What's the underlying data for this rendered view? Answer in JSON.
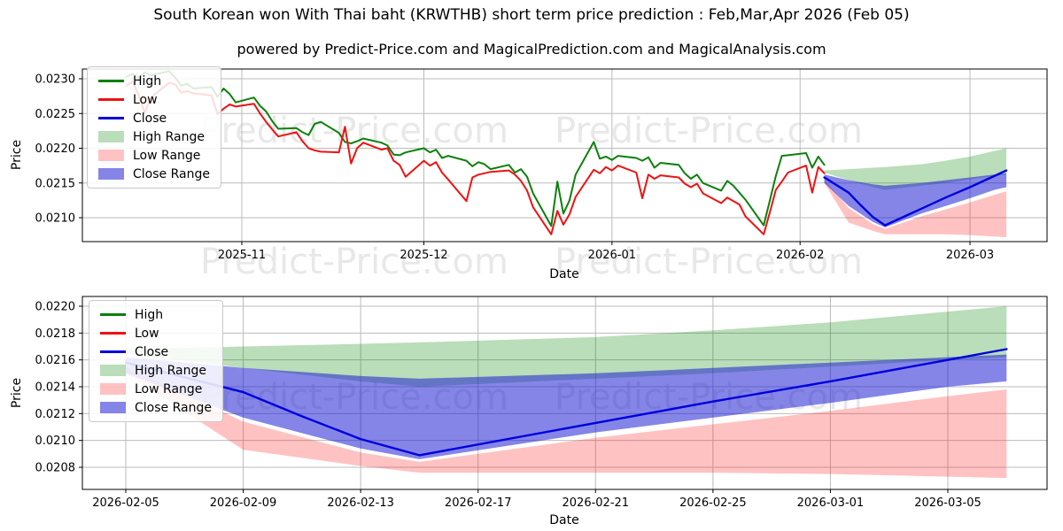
{
  "page": {
    "title": "South Korean won With Thai baht (KRWTHB) short term price prediction : Feb,Mar,Apr 2026 (Feb 05)",
    "subtitle": "powered by Predict-Price.com and MagicalPrediction.com and MagicalAnalysis.com",
    "watermark_text": "Predict-Price.com"
  },
  "colors": {
    "high": "#0c800c",
    "low": "#ee1212",
    "close": "#0000dd",
    "high_range": "rgba(0,128,0,0.27)",
    "low_range": "rgba(255,30,30,0.27)",
    "close_range": "rgba(25,25,210,0.53)",
    "grid": "#bbbbbb",
    "axis": "#000000"
  },
  "legend": [
    {
      "label": "High",
      "type": "line",
      "color": "high"
    },
    {
      "label": "Low",
      "type": "line",
      "color": "low"
    },
    {
      "label": "Close",
      "type": "line",
      "color": "close"
    },
    {
      "label": "High Range",
      "type": "patch",
      "color": "high_range"
    },
    {
      "label": "Low Range",
      "type": "patch",
      "color": "low_range"
    },
    {
      "label": "Close Range",
      "type": "patch",
      "color": "close_range"
    }
  ],
  "chart_data": [
    {
      "type": "line",
      "xlabel": "Date",
      "ylabel": "Price",
      "x_ticks": [
        {
          "label": "2025-11",
          "date": "2025-11-01"
        },
        {
          "label": "2025-12",
          "date": "2025-12-01"
        },
        {
          "label": "2026-01",
          "date": "2026-01-01"
        },
        {
          "label": "2026-02",
          "date": "2026-02-01"
        },
        {
          "label": "2026-03",
          "date": "2026-03-01"
        }
      ],
      "y_ticks": [
        {
          "label": "0.0230",
          "value": 0.023
        },
        {
          "label": "0.0225",
          "value": 0.0225
        },
        {
          "label": "0.0220",
          "value": 0.022
        },
        {
          "label": "0.0215",
          "value": 0.0215
        },
        {
          "label": "0.0210",
          "value": 0.021
        }
      ],
      "series": [
        {
          "name": "High",
          "color": "high",
          "dates": [
            "2025-10-13",
            "2025-10-14",
            "2025-10-15",
            "2025-10-16",
            "2025-10-17",
            "2025-10-20",
            "2025-10-21",
            "2025-10-22",
            "2025-10-23",
            "2025-10-24",
            "2025-10-27",
            "2025-10-28",
            "2025-10-29",
            "2025-10-30",
            "2025-10-31",
            "2025-11-03",
            "2025-11-04",
            "2025-11-05",
            "2025-11-06",
            "2025-11-07",
            "2025-11-10",
            "2025-11-11",
            "2025-11-12",
            "2025-11-13",
            "2025-11-14",
            "2025-11-17",
            "2025-11-18",
            "2025-11-19",
            "2025-11-20",
            "2025-11-21",
            "2025-11-24",
            "2025-11-25",
            "2025-11-26",
            "2025-11-27",
            "2025-11-28",
            "2025-12-01",
            "2025-12-02",
            "2025-12-03",
            "2025-12-04",
            "2025-12-05",
            "2025-12-08",
            "2025-12-09",
            "2025-12-10",
            "2025-12-11",
            "2025-12-12",
            "2025-12-15",
            "2025-12-16",
            "2025-12-17",
            "2025-12-18",
            "2025-12-19",
            "2025-12-22",
            "2025-12-23",
            "2025-12-24",
            "2025-12-25",
            "2025-12-26",
            "2025-12-29",
            "2025-12-30",
            "2025-12-31",
            "2026-01-01",
            "2026-01-02",
            "2026-01-05",
            "2026-01-06",
            "2026-01-07",
            "2026-01-08",
            "2026-01-09",
            "2026-01-12",
            "2026-01-13",
            "2026-01-14",
            "2026-01-15",
            "2026-01-16",
            "2026-01-19",
            "2026-01-20",
            "2026-01-21",
            "2026-01-22",
            "2026-01-23",
            "2026-01-26",
            "2026-01-27",
            "2026-01-28",
            "2026-01-29",
            "2026-01-30",
            "2026-02-02",
            "2026-02-03",
            "2026-02-04",
            "2026-02-05"
          ],
          "values": [
            0.02303,
            0.02307,
            0.02301,
            0.02309,
            0.02305,
            0.02311,
            0.02302,
            0.0229,
            0.02293,
            0.02286,
            0.02288,
            0.02274,
            0.02286,
            0.02278,
            0.02266,
            0.02273,
            0.02261,
            0.02253,
            0.02239,
            0.02228,
            0.02229,
            0.02223,
            0.02219,
            0.02235,
            0.02238,
            0.02222,
            0.02209,
            0.02207,
            0.0221,
            0.02214,
            0.02208,
            0.02204,
            0.02191,
            0.0219,
            0.02194,
            0.022,
            0.02194,
            0.02198,
            0.02186,
            0.02189,
            0.02182,
            0.02174,
            0.0218,
            0.02177,
            0.0217,
            0.02176,
            0.02165,
            0.0217,
            0.02159,
            0.02135,
            0.02088,
            0.02152,
            0.02106,
            0.02125,
            0.02162,
            0.02209,
            0.02185,
            0.02188,
            0.02183,
            0.02189,
            0.02186,
            0.02182,
            0.02187,
            0.02172,
            0.02179,
            0.02176,
            0.02164,
            0.02156,
            0.02162,
            0.0215,
            0.02139,
            0.02153,
            0.02146,
            0.02136,
            0.02126,
            0.02089,
            0.02124,
            0.0216,
            0.02189,
            0.0219,
            0.02193,
            0.02172,
            0.02188,
            0.02176
          ]
        },
        {
          "name": "Low",
          "color": "low",
          "dates": [
            "2025-10-13",
            "2025-10-14",
            "2025-10-15",
            "2025-10-16",
            "2025-10-17",
            "2025-10-20",
            "2025-10-21",
            "2025-10-22",
            "2025-10-23",
            "2025-10-24",
            "2025-10-27",
            "2025-10-28",
            "2025-10-29",
            "2025-10-30",
            "2025-10-31",
            "2025-11-03",
            "2025-11-04",
            "2025-11-05",
            "2025-11-06",
            "2025-11-07",
            "2025-11-10",
            "2025-11-11",
            "2025-11-12",
            "2025-11-13",
            "2025-11-14",
            "2025-11-17",
            "2025-11-18",
            "2025-11-19",
            "2025-11-20",
            "2025-11-21",
            "2025-11-24",
            "2025-11-25",
            "2025-11-26",
            "2025-11-27",
            "2025-11-28",
            "2025-12-01",
            "2025-12-02",
            "2025-12-03",
            "2025-12-04",
            "2025-12-05",
            "2025-12-08",
            "2025-12-09",
            "2025-12-10",
            "2025-12-11",
            "2025-12-12",
            "2025-12-15",
            "2025-12-16",
            "2025-12-17",
            "2025-12-18",
            "2025-12-19",
            "2025-12-22",
            "2025-12-23",
            "2025-12-24",
            "2025-12-25",
            "2025-12-26",
            "2025-12-29",
            "2025-12-30",
            "2025-12-31",
            "2026-01-01",
            "2026-01-02",
            "2026-01-05",
            "2026-01-06",
            "2026-01-07",
            "2026-01-08",
            "2026-01-09",
            "2026-01-12",
            "2026-01-13",
            "2026-01-14",
            "2026-01-15",
            "2026-01-16",
            "2026-01-19",
            "2026-01-20",
            "2026-01-21",
            "2026-01-22",
            "2026-01-23",
            "2026-01-26",
            "2026-01-27",
            "2026-01-28",
            "2026-01-29",
            "2026-01-30",
            "2026-02-02",
            "2026-02-03",
            "2026-02-04",
            "2026-02-05"
          ],
          "values": [
            0.0229,
            0.02296,
            0.02276,
            0.02251,
            0.02273,
            0.02294,
            0.02292,
            0.0228,
            0.02282,
            0.02279,
            0.02276,
            0.02249,
            0.02257,
            0.02263,
            0.0226,
            0.02264,
            0.0225,
            0.02238,
            0.02227,
            0.02217,
            0.02223,
            0.0221,
            0.022,
            0.02197,
            0.02195,
            0.02194,
            0.02231,
            0.02178,
            0.022,
            0.02208,
            0.02198,
            0.022,
            0.02182,
            0.02176,
            0.02159,
            0.02182,
            0.02175,
            0.0218,
            0.02165,
            0.02155,
            0.02124,
            0.02158,
            0.02162,
            0.02164,
            0.02166,
            0.02168,
            0.02162,
            0.02153,
            0.02139,
            0.02115,
            0.02076,
            0.0211,
            0.0209,
            0.02105,
            0.0213,
            0.02169,
            0.02164,
            0.02173,
            0.02168,
            0.02175,
            0.02165,
            0.02128,
            0.02162,
            0.02156,
            0.02161,
            0.02158,
            0.02149,
            0.02144,
            0.02149,
            0.02135,
            0.02121,
            0.02129,
            0.02124,
            0.02119,
            0.02102,
            0.02076,
            0.02107,
            0.0214,
            0.02152,
            0.02165,
            0.02175,
            0.02136,
            0.02173,
            0.02164
          ]
        },
        {
          "name": "Close",
          "color": "close",
          "dates": [
            "2026-02-05",
            "2026-02-09",
            "2026-02-11",
            "2026-02-13",
            "2026-02-15",
            "2026-02-21",
            "2026-02-25",
            "2026-03-01",
            "2026-03-05",
            "2026-03-07"
          ],
          "values": [
            0.02158,
            0.02136,
            0.02118,
            0.02101,
            0.02089,
            0.02113,
            0.02129,
            0.02144,
            0.0216,
            0.02168
          ]
        }
      ],
      "bands": [
        {
          "name": "High Range",
          "color": "high_range",
          "dates": [
            "2026-02-05",
            "2026-02-09",
            "2026-02-13",
            "2026-02-15",
            "2026-02-21",
            "2026-02-25",
            "2026-03-01",
            "2026-03-05",
            "2026-03-07"
          ],
          "upper": [
            0.02168,
            0.0217,
            0.02172,
            0.02173,
            0.02177,
            0.02182,
            0.02188,
            0.02196,
            0.022
          ],
          "lower": [
            0.02165,
            0.02154,
            0.02144,
            0.0214,
            0.02146,
            0.0215,
            0.02155,
            0.0216,
            0.02162
          ]
        },
        {
          "name": "Low Range",
          "color": "low_range",
          "dates": [
            "2026-02-05",
            "2026-02-09",
            "2026-02-13",
            "2026-02-15",
            "2026-02-21",
            "2026-02-25",
            "2026-03-01",
            "2026-03-05",
            "2026-03-07"
          ],
          "upper": [
            0.02155,
            0.02114,
            0.02091,
            0.02084,
            0.02102,
            0.02112,
            0.02122,
            0.02133,
            0.02138
          ],
          "lower": [
            0.0215,
            0.02093,
            0.02081,
            0.02076,
            0.02076,
            0.02076,
            0.02075,
            0.02073,
            0.02072
          ]
        },
        {
          "name": "Close Range",
          "color": "close_range",
          "dates": [
            "2026-02-05",
            "2026-02-09",
            "2026-02-13",
            "2026-02-15",
            "2026-02-21",
            "2026-02-25",
            "2026-03-01",
            "2026-03-05",
            "2026-03-07"
          ],
          "upper": [
            0.02162,
            0.02154,
            0.02148,
            0.02146,
            0.0215,
            0.02154,
            0.02158,
            0.02162,
            0.02164
          ],
          "lower": [
            0.0215,
            0.02117,
            0.02094,
            0.02086,
            0.02106,
            0.02117,
            0.02128,
            0.0214,
            0.02144
          ]
        }
      ]
    },
    {
      "type": "line",
      "xlabel": "Date",
      "ylabel": "Price",
      "x_ticks": [
        {
          "label": "2026-02-05",
          "date": "2026-02-05"
        },
        {
          "label": "2026-02-09",
          "date": "2026-02-09"
        },
        {
          "label": "2026-02-13",
          "date": "2026-02-13"
        },
        {
          "label": "2026-02-17",
          "date": "2026-02-17"
        },
        {
          "label": "2026-02-21",
          "date": "2026-02-21"
        },
        {
          "label": "2026-02-25",
          "date": "2026-02-25"
        },
        {
          "label": "2026-03-01",
          "date": "2026-03-01"
        },
        {
          "label": "2026-03-05",
          "date": "2026-03-05"
        }
      ],
      "y_ticks": [
        {
          "label": "0.0220",
          "value": 0.022
        },
        {
          "label": "0.0218",
          "value": 0.0218
        },
        {
          "label": "0.0216",
          "value": 0.0216
        },
        {
          "label": "0.0214",
          "value": 0.0214
        },
        {
          "label": "0.0212",
          "value": 0.0212
        },
        {
          "label": "0.0210",
          "value": 0.021
        },
        {
          "label": "0.0208",
          "value": 0.0208
        }
      ],
      "series": [
        {
          "name": "Close",
          "color": "close",
          "dates": [
            "2026-02-05",
            "2026-02-09",
            "2026-02-11",
            "2026-02-13",
            "2026-02-15",
            "2026-02-21",
            "2026-02-25",
            "2026-03-01",
            "2026-03-05",
            "2026-03-07"
          ],
          "values": [
            0.02158,
            0.02136,
            0.02118,
            0.02101,
            0.02089,
            0.02113,
            0.02129,
            0.02144,
            0.0216,
            0.02168
          ]
        }
      ],
      "bands": [
        {
          "name": "High Range",
          "color": "high_range",
          "dates": [
            "2026-02-05",
            "2026-02-09",
            "2026-02-13",
            "2026-02-15",
            "2026-02-21",
            "2026-02-25",
            "2026-03-01",
            "2026-03-05",
            "2026-03-07"
          ],
          "upper": [
            0.02168,
            0.0217,
            0.02172,
            0.02173,
            0.02177,
            0.02182,
            0.02188,
            0.02196,
            0.022
          ],
          "lower": [
            0.02165,
            0.02154,
            0.02144,
            0.0214,
            0.02146,
            0.0215,
            0.02155,
            0.0216,
            0.02162
          ]
        },
        {
          "name": "Low Range",
          "color": "low_range",
          "dates": [
            "2026-02-05",
            "2026-02-09",
            "2026-02-13",
            "2026-02-15",
            "2026-02-21",
            "2026-02-25",
            "2026-03-01",
            "2026-03-05",
            "2026-03-07"
          ],
          "upper": [
            0.02155,
            0.02114,
            0.02091,
            0.02084,
            0.02102,
            0.02112,
            0.02122,
            0.02133,
            0.02138
          ],
          "lower": [
            0.0215,
            0.02093,
            0.02081,
            0.02076,
            0.02076,
            0.02076,
            0.02075,
            0.02073,
            0.02072
          ]
        },
        {
          "name": "Close Range",
          "color": "close_range",
          "dates": [
            "2026-02-05",
            "2026-02-09",
            "2026-02-13",
            "2026-02-15",
            "2026-02-21",
            "2026-02-25",
            "2026-03-01",
            "2026-03-05",
            "2026-03-07"
          ],
          "upper": [
            0.02162,
            0.02154,
            0.02148,
            0.02146,
            0.0215,
            0.02154,
            0.02158,
            0.02162,
            0.02164
          ],
          "lower": [
            0.0215,
            0.02117,
            0.02094,
            0.02086,
            0.02106,
            0.02117,
            0.02128,
            0.0214,
            0.02144
          ]
        }
      ]
    }
  ]
}
